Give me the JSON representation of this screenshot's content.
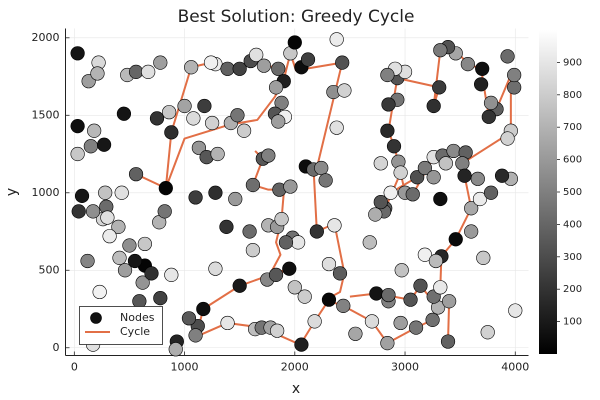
{
  "chart_data": {
    "type": "scatter",
    "title": "Best Solution: Greedy Cycle",
    "xlabel": "x",
    "ylabel": "y",
    "xlim": [
      -80,
      4120
    ],
    "ylim": [
      -50,
      2060
    ],
    "x_ticks": [
      0,
      1000,
      2000,
      3000,
      4000
    ],
    "y_ticks": [
      0,
      500,
      1000,
      1500,
      2000
    ],
    "grid": true,
    "legend": {
      "position": "bottom-left",
      "entries": [
        {
          "name": "Nodes",
          "marker": "circle",
          "color": "#111111"
        },
        {
          "name": "Cycle",
          "marker": "line",
          "color": "#e26f46"
        }
      ]
    },
    "colorbar": {
      "range": [
        0,
        1000
      ],
      "ticks": [
        100,
        200,
        300,
        400,
        500,
        600,
        700,
        800,
        900
      ],
      "colormap": "grays"
    },
    "nodes": [
      [
        30,
        1900,
        80
      ],
      [
        220,
        1840,
        850
      ],
      [
        130,
        1720,
        620
      ],
      [
        210,
        1770,
        700
      ],
      [
        30,
        1430,
        60
      ],
      [
        180,
        1400,
        720
      ],
      [
        30,
        1250,
        780
      ],
      [
        150,
        1300,
        500
      ],
      [
        270,
        1310,
        90
      ],
      [
        450,
        1510,
        80
      ],
      [
        480,
        1760,
        730
      ],
      [
        560,
        1780,
        400
      ],
      [
        670,
        1780,
        880
      ],
      [
        780,
        1840,
        620
      ],
      [
        560,
        1120,
        380
      ],
      [
        750,
        1480,
        200
      ],
      [
        860,
        1520,
        780
      ],
      [
        1000,
        1560,
        640
      ],
      [
        1080,
        1480,
        860
      ],
      [
        1130,
        1290,
        590
      ],
      [
        1200,
        1230,
        340
      ],
      [
        1300,
        1250,
        700
      ],
      [
        1250,
        1450,
        820
      ],
      [
        1420,
        1450,
        690
      ],
      [
        1480,
        1500,
        460
      ],
      [
        1540,
        1400,
        800
      ],
      [
        1280,
        1830,
        920
      ],
      [
        1390,
        1800,
        380
      ],
      [
        1500,
        1800,
        260
      ],
      [
        1600,
        1850,
        300
      ],
      [
        1650,
        1890,
        880
      ],
      [
        1720,
        1820,
        620
      ],
      [
        1850,
        1800,
        420
      ],
      [
        1900,
        1720,
        120
      ],
      [
        1960,
        1900,
        780
      ],
      [
        2000,
        1970,
        20
      ],
      [
        2060,
        1810,
        50
      ],
      [
        2120,
        1860,
        250
      ],
      [
        2380,
        1990,
        920
      ],
      [
        2430,
        1840,
        320
      ],
      [
        1830,
        1680,
        620
      ],
      [
        1880,
        1580,
        500
      ],
      [
        1820,
        1510,
        330
      ],
      [
        2350,
        1650,
        560
      ],
      [
        2450,
        1660,
        820
      ],
      [
        2380,
        1420,
        880
      ],
      [
        1910,
        1490,
        940
      ],
      [
        1710,
        1220,
        340
      ],
      [
        1620,
        1050,
        430
      ],
      [
        1760,
        1240,
        500
      ],
      [
        1860,
        1020,
        390
      ],
      [
        1960,
        1040,
        600
      ],
      [
        1760,
        790,
        700
      ],
      [
        1840,
        780,
        600
      ],
      [
        1880,
        830,
        780
      ],
      [
        1980,
        710,
        440
      ],
      [
        2030,
        680,
        900
      ],
      [
        1920,
        680,
        380
      ],
      [
        1750,
        440,
        530
      ],
      [
        2000,
        390,
        760
      ],
      [
        1830,
        470,
        340
      ],
      [
        1950,
        510,
        60
      ],
      [
        2100,
        1170,
        50
      ],
      [
        2170,
        1150,
        420
      ],
      [
        2240,
        1160,
        540
      ],
      [
        2280,
        1080,
        460
      ],
      [
        2200,
        750,
        200
      ],
      [
        2360,
        790,
        900
      ],
      [
        2310,
        540,
        870
      ],
      [
        2410,
        480,
        360
      ],
      [
        2090,
        330,
        800
      ],
      [
        2060,
        20,
        120
      ],
      [
        2180,
        170,
        860
      ],
      [
        2310,
        310,
        30
      ],
      [
        2440,
        270,
        510
      ],
      [
        2700,
        170,
        860
      ],
      [
        2840,
        30,
        630
      ],
      [
        2850,
        300,
        500
      ],
      [
        2960,
        160,
        620
      ],
      [
        3100,
        130,
        460
      ],
      [
        3250,
        180,
        440
      ],
      [
        3300,
        260,
        700
      ],
      [
        3400,
        300,
        620
      ],
      [
        3390,
        40,
        380
      ],
      [
        3260,
        330,
        440
      ],
      [
        3320,
        390,
        910
      ],
      [
        3140,
        400,
        320
      ],
      [
        3050,
        310,
        330
      ],
      [
        2740,
        350,
        80
      ],
      [
        2850,
        340,
        420
      ],
      [
        3180,
        600,
        940
      ],
      [
        3330,
        590,
        150
      ],
      [
        3460,
        700,
        40
      ],
      [
        3280,
        560,
        730
      ],
      [
        3600,
        750,
        600
      ],
      [
        3710,
        580,
        780
      ],
      [
        3600,
        900,
        660
      ],
      [
        3680,
        960,
        920
      ],
      [
        3660,
        1090,
        540
      ],
      [
        3780,
        1000,
        380
      ],
      [
        3960,
        1400,
        800
      ],
      [
        3960,
        1090,
        690
      ],
      [
        3990,
        1680,
        430
      ],
      [
        3930,
        1350,
        820
      ],
      [
        3830,
        1540,
        370
      ],
      [
        3690,
        1700,
        130
      ],
      [
        3760,
        1490,
        200
      ],
      [
        3780,
        1580,
        570
      ],
      [
        3930,
        1880,
        420
      ],
      [
        3990,
        1760,
        500
      ],
      [
        3700,
        1800,
        60
      ],
      [
        3570,
        1830,
        530
      ],
      [
        3460,
        1900,
        650
      ],
      [
        3390,
        1940,
        320
      ],
      [
        3320,
        1920,
        480
      ],
      [
        3260,
        1560,
        190
      ],
      [
        3310,
        1680,
        230
      ],
      [
        2930,
        1740,
        330
      ],
      [
        3000,
        1780,
        870
      ],
      [
        2930,
        1600,
        460
      ],
      [
        2850,
        1570,
        220
      ],
      [
        2840,
        1400,
        160
      ],
      [
        2900,
        1300,
        200
      ],
      [
        2940,
        1200,
        580
      ],
      [
        2960,
        1130,
        820
      ],
      [
        3000,
        1000,
        600
      ],
      [
        2870,
        1000,
        940
      ],
      [
        2820,
        900,
        360
      ],
      [
        2810,
        880,
        410
      ],
      [
        2730,
        860,
        680
      ],
      [
        2780,
        940,
        330
      ],
      [
        3070,
        990,
        420
      ],
      [
        3110,
        1100,
        310
      ],
      [
        3260,
        1230,
        880
      ],
      [
        3340,
        1240,
        420
      ],
      [
        3440,
        1270,
        540
      ],
      [
        3550,
        1260,
        380
      ],
      [
        3520,
        1190,
        500
      ],
      [
        3540,
        1110,
        140
      ],
      [
        3320,
        960,
        60
      ],
      [
        3370,
        1190,
        760
      ],
      [
        2910,
        1800,
        880
      ],
      [
        3180,
        1160,
        480
      ],
      [
        2680,
        680,
        740
      ],
      [
        2970,
        500,
        760
      ],
      [
        3260,
        1100,
        590
      ],
      [
        2840,
        1760,
        500
      ],
      [
        3750,
        100,
        820
      ],
      [
        4000,
        240,
        900
      ],
      [
        3880,
        1110,
        160
      ],
      [
        2780,
        1190,
        830
      ],
      [
        2550,
        90,
        650
      ],
      [
        1620,
        630,
        800
      ],
      [
        1590,
        750,
        420
      ],
      [
        1380,
        780,
        200
      ],
      [
        1500,
        400,
        100
      ],
      [
        1280,
        510,
        860
      ],
      [
        1170,
        250,
        60
      ],
      [
        1120,
        140,
        300
      ],
      [
        1100,
        80,
        500
      ],
      [
        1390,
        160,
        900
      ],
      [
        1640,
        120,
        740
      ],
      [
        1700,
        130,
        460
      ],
      [
        1780,
        130,
        640
      ],
      [
        1840,
        110,
        820
      ],
      [
        1100,
        970,
        240
      ],
      [
        1280,
        1000,
        180
      ],
      [
        1460,
        960,
        600
      ],
      [
        1180,
        1560,
        240
      ],
      [
        880,
        1390,
        180
      ],
      [
        830,
        1030,
        20
      ],
      [
        770,
        810,
        700
      ],
      [
        820,
        880,
        460
      ],
      [
        640,
        670,
        780
      ],
      [
        640,
        530,
        20
      ],
      [
        590,
        300,
        340
      ],
      [
        780,
        320,
        260
      ],
      [
        670,
        140,
        760
      ],
      [
        930,
        40,
        140
      ],
      [
        920,
        -10,
        680
      ],
      [
        1040,
        190,
        350
      ],
      [
        880,
        470,
        900
      ],
      [
        500,
        660,
        560
      ],
      [
        410,
        580,
        740
      ],
      [
        430,
        1000,
        880
      ],
      [
        400,
        780,
        700
      ],
      [
        260,
        830,
        840
      ],
      [
        170,
        880,
        560
      ],
      [
        290,
        910,
        420
      ],
      [
        280,
        1000,
        760
      ],
      [
        70,
        980,
        90
      ],
      [
        40,
        880,
        200
      ],
      [
        120,
        560,
        520
      ],
      [
        320,
        720,
        920
      ],
      [
        460,
        500,
        620
      ],
      [
        550,
        560,
        90
      ],
      [
        620,
        420,
        580
      ],
      [
        700,
        480,
        190
      ],
      [
        170,
        20,
        880
      ],
      [
        230,
        360,
        950
      ],
      [
        300,
        840,
        880
      ],
      [
        1060,
        1810,
        700
      ],
      [
        1240,
        1840,
        940
      ],
      [
        1850,
        1460,
        620
      ]
    ],
    "cycle": [
      [
        560,
        1120
      ],
      [
        830,
        1030
      ],
      [
        1000,
        1360
      ],
      [
        1420,
        1450
      ],
      [
        1660,
        1480
      ],
      [
        1850,
        1610
      ],
      [
        1900,
        1720
      ],
      [
        1850,
        1800
      ],
      [
        1700,
        1830
      ],
      [
        1630,
        1860
      ],
      [
        1500,
        1800
      ],
      [
        1280,
        1830
      ],
      [
        1060,
        1810
      ],
      [
        860,
        1480
      ],
      [
        830,
        1030
      ]
    ],
    "cycle_segments": [
      [
        [
          560,
          1120
        ],
        [
          830,
          1030
        ],
        [
          1000,
          1350
        ],
        [
          1410,
          1440
        ],
        [
          1660,
          1470
        ],
        [
          1820,
          1620
        ],
        [
          1900,
          1730
        ],
        [
          1850,
          1800
        ],
        [
          1720,
          1830
        ],
        [
          1640,
          1860
        ],
        [
          1500,
          1810
        ],
        [
          1240,
          1840
        ],
        [
          1060,
          1810
        ],
        [
          880,
          1390
        ],
        [
          830,
          1030
        ]
      ],
      [
        [
          1900,
          1730
        ],
        [
          1960,
          1900
        ],
        [
          2010,
          1790
        ],
        [
          2060,
          1810
        ],
        [
          2100,
          1800
        ],
        [
          2430,
          1840
        ],
        [
          2200,
          1160
        ],
        [
          2270,
          1100
        ],
        [
          2170,
          1160
        ]
      ],
      [
        [
          1640,
          1270
        ],
        [
          1710,
          1220
        ],
        [
          1620,
          1050
        ],
        [
          1760,
          1020
        ],
        [
          1860,
          1020
        ],
        [
          1900,
          1000
        ],
        [
          1880,
          830
        ],
        [
          1830,
          680
        ],
        [
          1870,
          600
        ],
        [
          1750,
          440
        ],
        [
          1820,
          470
        ],
        [
          1990,
          520
        ]
      ],
      [
        [
          2170,
          1160
        ],
        [
          2200,
          750
        ],
        [
          2360,
          800
        ],
        [
          2450,
          480
        ],
        [
          2410,
          360
        ],
        [
          2280,
          310
        ],
        [
          2440,
          270
        ],
        [
          2700,
          170
        ],
        [
          2840,
          30
        ],
        [
          3100,
          130
        ],
        [
          3250,
          180
        ],
        [
          3300,
          260
        ]
      ],
      [
        [
          1990,
          520
        ],
        [
          1860,
          490
        ],
        [
          1500,
          400
        ],
        [
          1170,
          250
        ],
        [
          1130,
          140
        ],
        [
          1100,
          70
        ],
        [
          1390,
          160
        ],
        [
          1700,
          130
        ],
        [
          2050,
          20
        ],
        [
          2180,
          170
        ],
        [
          2310,
          310
        ]
      ],
      [
        [
          3300,
          260
        ],
        [
          3400,
          300
        ],
        [
          3390,
          40
        ]
      ],
      [
        [
          3260,
          330
        ],
        [
          3320,
          390
        ],
        [
          3330,
          590
        ],
        [
          3460,
          700
        ],
        [
          3600,
          900
        ],
        [
          3540,
          1110
        ],
        [
          3530,
          1190
        ]
      ],
      [
        [
          3300,
          260
        ],
        [
          3140,
          400
        ],
        [
          3050,
          310
        ],
        [
          2740,
          350
        ],
        [
          2500,
          330
        ]
      ],
      [
        [
          2730,
          860
        ],
        [
          2810,
          880
        ],
        [
          2960,
          1130
        ],
        [
          3000,
          1000
        ],
        [
          3070,
          990
        ],
        [
          3260,
          1230
        ],
        [
          3340,
          1240
        ],
        [
          3440,
          1270
        ],
        [
          3550,
          1260
        ],
        [
          3520,
          1190
        ],
        [
          3540,
          1110
        ]
      ],
      [
        [
          2730,
          860
        ],
        [
          2790,
          930
        ],
        [
          2940,
          1030
        ],
        [
          3110,
          1100
        ],
        [
          3180,
          1160
        ]
      ],
      [
        [
          3520,
          1190
        ],
        [
          3960,
          1390
        ],
        [
          3960,
          1760
        ],
        [
          3830,
          1540
        ],
        [
          3760,
          1490
        ],
        [
          3690,
          1800
        ],
        [
          3570,
          1830
        ],
        [
          3460,
          1920
        ],
        [
          3390,
          1940
        ],
        [
          3320,
          1920
        ],
        [
          3260,
          1560
        ],
        [
          3310,
          1680
        ],
        [
          2930,
          1740
        ],
        [
          2850,
          1400
        ],
        [
          2900,
          1300
        ],
        [
          2940,
          1200
        ],
        [
          2960,
          1130
        ]
      ]
    ]
  }
}
